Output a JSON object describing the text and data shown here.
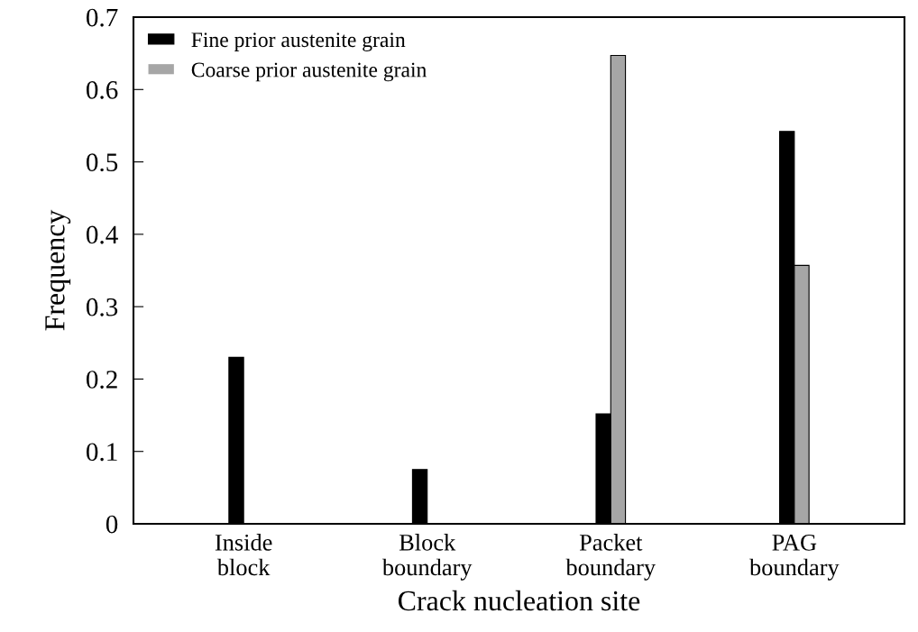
{
  "chart_data": {
    "type": "bar",
    "xlabel": "Crack nucleation site",
    "ylabel": "Frequency",
    "categories": [
      "Inside\nblock",
      "Block\nboundary",
      "Packet\nboundary",
      "PAG\nboundary"
    ],
    "series": [
      {
        "name": "Fine prior austenite grain",
        "color": "#000000",
        "values": [
          0.23,
          0.075,
          0.152,
          0.542
        ]
      },
      {
        "name": "Coarse prior austenite grain",
        "color": "#a6a6a6",
        "values": [
          0,
          0,
          0.647,
          0.357
        ]
      }
    ],
    "ylim": [
      0,
      0.7
    ],
    "yticks": [
      0,
      0.1,
      0.2,
      0.3,
      0.4,
      0.5,
      0.6,
      0.7
    ],
    "grid": false,
    "legend": "top left"
  }
}
